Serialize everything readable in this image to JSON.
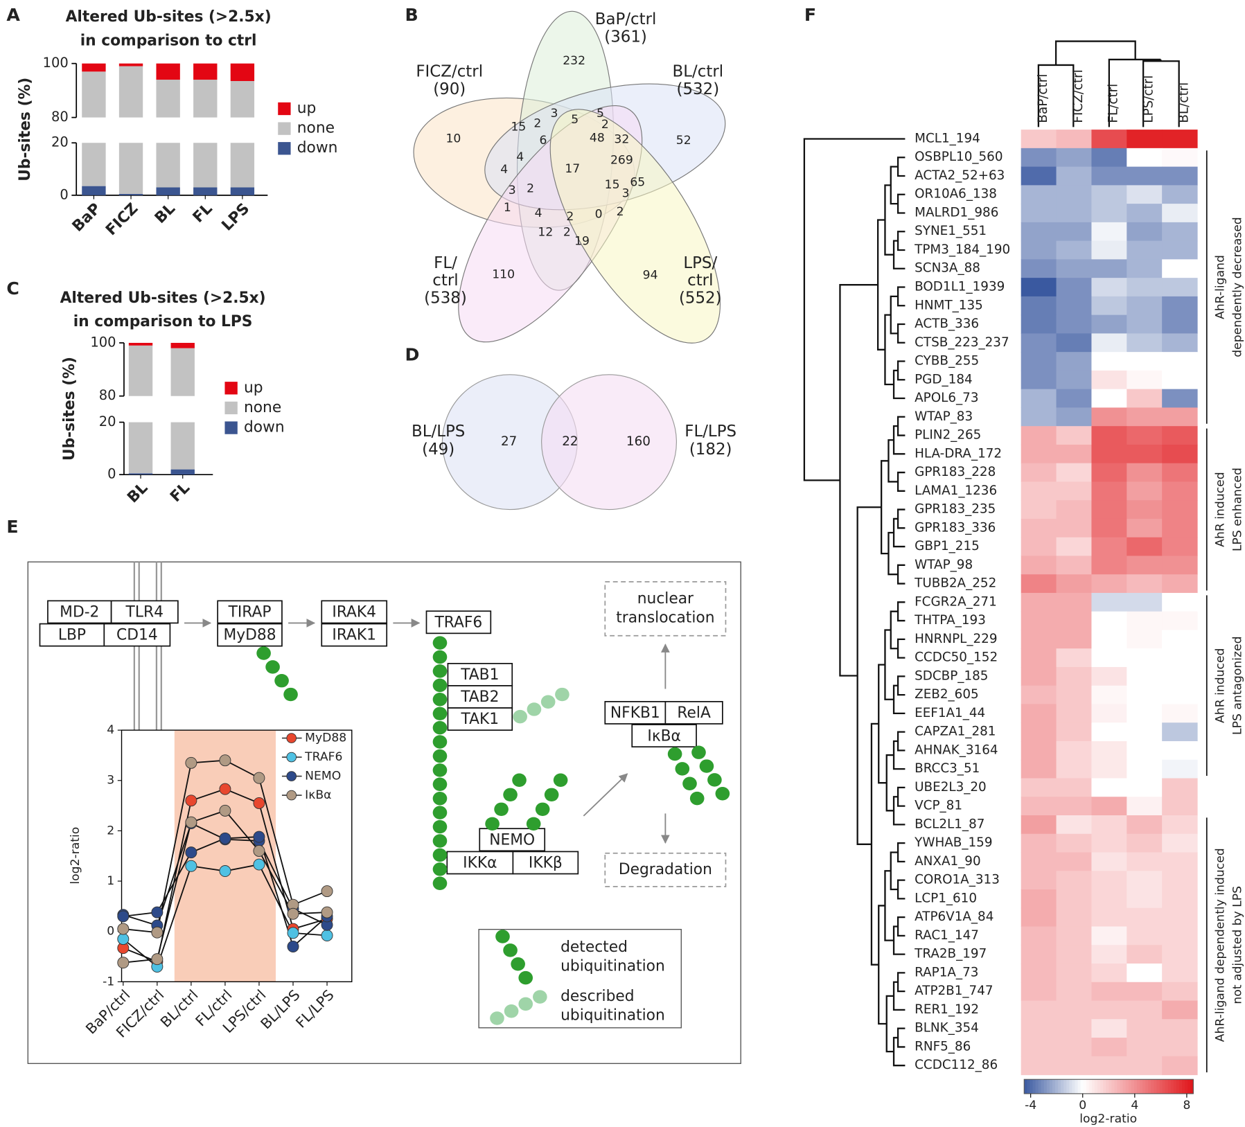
{
  "panel_labels": [
    "A",
    "B",
    "C",
    "D",
    "E",
    "F"
  ],
  "chart_data": [
    {
      "type": "stacked_bar",
      "title": [
        "Altered Ub-sites (>2.5x)",
        "in comparison to ctrl"
      ],
      "ylabel": "Ub-sites (%)",
      "categories": [
        "BaP",
        "FICZ",
        "BL",
        "FL",
        "LPS"
      ],
      "series": [
        {
          "name": "up",
          "color": "#e30613",
          "values": [
            3,
            1,
            6,
            6,
            6.5
          ]
        },
        {
          "name": "none",
          "color": "#c2c2c2",
          "values": [
            93.5,
            98.5,
            91,
            91,
            90.5
          ]
        },
        {
          "name": "down",
          "color": "#3b5590",
          "values": [
            3.5,
            0.5,
            3,
            3,
            3
          ]
        }
      ],
      "ylim": [
        0,
        100
      ],
      "yticks": [
        0,
        20,
        80,
        100
      ],
      "axis_break": [
        20,
        80
      ]
    },
    {
      "type": "stacked_bar",
      "title": [
        "Altered Ub-sites (>2.5x)",
        "in comparison to LPS"
      ],
      "ylabel": "Ub-sites (%)",
      "categories": [
        "BL",
        "FL"
      ],
      "series": [
        {
          "name": "up",
          "color": "#e30613",
          "values": [
            1,
            2
          ]
        },
        {
          "name": "none",
          "color": "#c2c2c2",
          "values": [
            98.5,
            96
          ]
        },
        {
          "name": "down",
          "color": "#3b5590",
          "values": [
            0.5,
            2
          ]
        }
      ],
      "ylim": [
        0,
        100
      ],
      "yticks": [
        0,
        20,
        80,
        100
      ],
      "axis_break": [
        20,
        80
      ]
    },
    {
      "type": "line",
      "ylabel": "log2-ratio",
      "categories": [
        "BaP/ctrl",
        "FICZ/ctrl",
        "BL/ctrl",
        "FL/ctrl",
        "LPS/ctrl",
        "BL/LPS",
        "FL/LPS"
      ],
      "series": [
        {
          "name": "MyD88",
          "color": "#e8472e",
          "values": [
            [
              -0.33,
              -0.6,
              2.6,
              2.83,
              2.55,
              0.05,
              0.25
            ]
          ]
        },
        {
          "name": "TRAF6",
          "color": "#4fc1e3",
          "values": [
            [
              -0.15,
              -0.7,
              1.3,
              1.2,
              1.33,
              -0.03,
              -0.08
            ]
          ]
        },
        {
          "name": "NEMO",
          "color": "#2d4a8a",
          "values": [
            [
              0.33,
              0.12,
              2.15,
              1.83,
              1.8,
              0.45,
              0.13
            ],
            [
              0.3,
              0.38,
              1.57,
              1.85,
              1.88,
              -0.3,
              0.3
            ]
          ]
        },
        {
          "name": "IκBα",
          "color": "#b09a84",
          "values": [
            [
              0.05,
              -0.02,
              3.35,
              3.4,
              3.05,
              0.53,
              0.8
            ],
            [
              -0.62,
              -0.55,
              2.17,
              2.4,
              1.6,
              0.35,
              0.38
            ]
          ]
        }
      ],
      "ylim": [
        -1,
        4
      ],
      "yticks": [
        -1,
        0,
        1,
        2,
        3,
        4
      ],
      "highlight_range": [
        2,
        4
      ],
      "highlight_color": "#f9cdb8"
    },
    {
      "type": "heatmap",
      "columns": [
        "BaP/ctrl",
        "FICZ/ctrl",
        "FL/ctrl",
        "LPS/ctrl",
        "BL/ctrl"
      ],
      "rows": [
        "MCL1_194",
        "OSBPL10_560",
        "ACTA2_52+63",
        "OR10A6_138",
        "MALRD1_986",
        "SYNE1_551",
        "TPM3_184_190",
        "SCN3A_88",
        "BOD1L1_1939",
        "HNMT_135",
        "ACTB_336",
        "CTSB_223_237",
        "CYBB_255",
        "PGD_184",
        "APOL6_73",
        "WTAP_83",
        "PLIN2_265",
        "HLA-DRA_172",
        "GPR183_228",
        "LAMA1_1236",
        "GPR183_235",
        "GPR183_336",
        "GBP1_215",
        "WTAP_98",
        "TUBB2A_252",
        "FCGR2A_271",
        "THTPA_193",
        "HNRNPL_229",
        "CCDC50_152",
        "SDCBP_185",
        "ZEB2_605",
        "EEF1A1_44",
        "CAPZA1_281",
        "AHNAK_3164",
        "BRCC3_51",
        "UBE2L3_20",
        "VCP_81",
        "BCL2L1_87",
        "YWHAB_159",
        "ANXA1_90",
        "CORO1A_313",
        "LCP1_610",
        "ATP6V1A_84",
        "RAC1_147",
        "TRA2B_197",
        "RAP1A_73",
        "ATP2B1_747",
        "RER1_192",
        "BLNK_354",
        "RNF5_86",
        "CCDC112_86"
      ],
      "values": [
        [
          2,
          2.5,
          6.5,
          8,
          8
        ],
        [
          -3,
          -2.5,
          -3.5,
          0,
          0.2
        ],
        [
          -4,
          -2,
          -3,
          -3,
          -3
        ],
        [
          -2,
          -2,
          -1.5,
          -0.8,
          -2
        ],
        [
          -2,
          -2,
          -1.5,
          -2,
          -0.5
        ],
        [
          -2.5,
          -2.5,
          -0.3,
          -2.5,
          -2
        ],
        [
          -2.5,
          -2,
          -0.5,
          -2,
          -2
        ],
        [
          -3,
          -2.5,
          -2.5,
          -2,
          0
        ],
        [
          -4.5,
          -3,
          -1,
          -1.5,
          -1.5
        ],
        [
          -3.5,
          -3,
          -1.5,
          -2,
          -3
        ],
        [
          -3.5,
          -3,
          -2.5,
          -2,
          -3
        ],
        [
          -3,
          -3.5,
          -0.5,
          -1.5,
          -2
        ],
        [
          -3,
          -2.5,
          0,
          0,
          0
        ],
        [
          -3,
          -2.5,
          1,
          0.3,
          0
        ],
        [
          -2,
          -3,
          0,
          2,
          -3
        ],
        [
          -2,
          -2.5,
          4,
          3.5,
          3.5
        ],
        [
          3,
          2,
          6,
          5.5,
          6
        ],
        [
          3,
          3,
          6,
          6,
          6.5
        ],
        [
          2.5,
          1.5,
          5.5,
          4,
          5
        ],
        [
          2,
          2,
          5,
          3.5,
          4.5
        ],
        [
          2,
          2.5,
          5,
          4,
          4.5
        ],
        [
          2.5,
          2.5,
          5,
          3.5,
          4.5
        ],
        [
          2.5,
          1.5,
          4.5,
          5.5,
          4.5
        ],
        [
          3,
          2.5,
          4.5,
          4,
          4
        ],
        [
          4.5,
          3.5,
          3,
          2.5,
          3
        ],
        [
          3,
          3,
          -1,
          -1,
          0
        ],
        [
          3,
          3,
          0,
          0.3,
          0.3
        ],
        [
          3,
          3,
          0,
          0.3,
          0
        ],
        [
          3,
          1.5,
          0,
          0,
          0
        ],
        [
          3,
          2,
          1,
          0,
          0
        ],
        [
          2.5,
          2,
          0.3,
          0,
          0
        ],
        [
          3,
          2,
          0.5,
          0,
          0.3
        ],
        [
          3,
          2,
          0,
          0,
          -1.5
        ],
        [
          3,
          1.5,
          0.8,
          0,
          0
        ],
        [
          3,
          1.5,
          0.8,
          0,
          -0.3
        ],
        [
          2,
          2,
          0,
          0,
          2
        ],
        [
          2.5,
          2.5,
          3,
          0.5,
          2
        ],
        [
          3.5,
          1,
          1.5,
          2.5,
          1.5
        ],
        [
          2.5,
          2,
          1.5,
          2,
          1
        ],
        [
          2.5,
          2.5,
          1,
          1.5,
          1.5
        ],
        [
          2.5,
          2,
          1.5,
          1,
          1.5
        ],
        [
          3,
          2,
          1.5,
          1,
          1.5
        ],
        [
          3,
          2,
          1.5,
          1.5,
          1.5
        ],
        [
          2.5,
          2,
          0.5,
          1.5,
          1.5
        ],
        [
          2.5,
          2,
          1,
          2,
          1.5
        ],
        [
          2.5,
          2,
          1.5,
          0,
          1.5
        ],
        [
          2.5,
          2,
          2.5,
          2.5,
          2
        ],
        [
          2,
          2,
          2,
          2,
          3
        ],
        [
          2,
          2,
          1,
          2,
          2
        ],
        [
          2,
          2,
          2.5,
          2,
          2
        ],
        [
          2,
          2,
          2,
          2,
          2.5
        ]
      ],
      "clim": [
        -4.5,
        8.5
      ],
      "colors": [
        "#3a59a0",
        "#ffffff",
        "#e0151a"
      ],
      "cticks": [
        -4,
        0,
        4,
        8
      ],
      "colorbar_label": "log2-ratio",
      "groups": [
        {
          "label": [
            "AhR-ligand",
            "dependently decreased"
          ],
          "rows": [
            1,
            15
          ]
        },
        {
          "label": [
            "AhR induced",
            "LPS enhanced"
          ],
          "rows": [
            16,
            24
          ]
        },
        {
          "label": [
            "AhR induced",
            "LPS antagonized"
          ],
          "rows": [
            25,
            34
          ]
        },
        {
          "label": [
            "AhR-ligand dependently induced",
            "not adjusted by LPS"
          ],
          "rows": [
            37,
            50
          ]
        }
      ]
    }
  ],
  "venn_b": {
    "sets": [
      {
        "label": [
          "FICZ/ctrl",
          "(90)"
        ],
        "color": "#e8a951",
        "fill": "#fbe3c6"
      },
      {
        "label": [
          "BaP/ctrl",
          "(361)"
        ],
        "color": "#8fcf8f",
        "fill": "#dcefd8"
      },
      {
        "label": [
          "BL/ctrl",
          "(532)"
        ],
        "color": "#7b95d8",
        "fill": "#dbe2f6"
      },
      {
        "label": [
          "FL/",
          "ctrl",
          "(538)"
        ],
        "color": "#e09be0",
        "fill": "#f6dbf4"
      },
      {
        "label": [
          "LPS/",
          "ctrl",
          "(552)"
        ],
        "color": "#e0db3a",
        "fill": "#f8f5c2"
      }
    ],
    "regions": [
      232,
      10,
      52,
      110,
      94,
      15,
      2,
      3,
      5,
      5,
      2,
      6,
      48,
      32,
      269,
      17,
      4,
      4,
      3,
      2,
      15,
      65,
      3,
      1,
      4,
      2,
      0,
      2,
      12,
      2,
      19
    ]
  },
  "venn_d": {
    "sets": [
      {
        "label": [
          "BL/LPS",
          "(49)"
        ],
        "color": "#7b95d8",
        "fill": "#dde3f5"
      },
      {
        "label": [
          "FL/LPS",
          "(182)"
        ],
        "color": "#e09be0",
        "fill": "#f5def4"
      }
    ],
    "regions": [
      27,
      22,
      160
    ]
  },
  "pathway": {
    "nodes": [
      "MD-2",
      "TLR4",
      "LBP",
      "CD14",
      "TIRAP",
      "MyD88",
      "IRAK4",
      "IRAK1",
      "TRAF6",
      "TAB1",
      "TAB2",
      "TAK1",
      "NFKB1",
      "RelA",
      "IκBα",
      "NEMO",
      "IKKα",
      "IKKβ"
    ],
    "notes": [
      [
        "nuclear",
        "translocation"
      ],
      [
        "Degradation"
      ]
    ],
    "legend": [
      [
        "detected",
        "ubiquitination"
      ],
      [
        "described",
        "ubiquitination"
      ]
    ]
  }
}
